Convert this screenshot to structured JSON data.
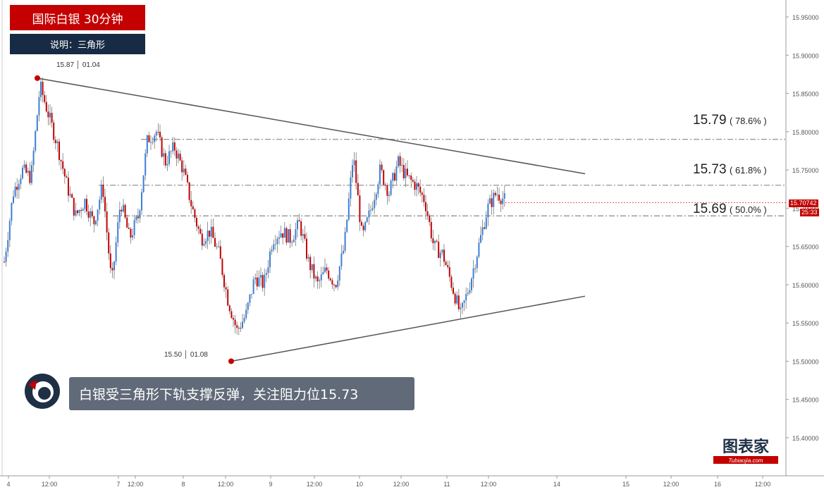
{
  "header": {
    "title": "国际白银 30分钟",
    "note": "说明：三角形"
  },
  "caption": "白银受三角形下轨支撑反弹，关注阻力位15.73",
  "watermark": {
    "main": "图表家",
    "sub": "Tubiaojia.com"
  },
  "extremes": {
    "high": "15.87 │ 01.04",
    "low": "15.50 │ 01.08"
  },
  "levels": [
    {
      "price": "15.79",
      "pct": "( 78.6% )"
    },
    {
      "price": "15.73",
      "pct": "( 61.8% )"
    },
    {
      "price": "15.69",
      "pct": "( 50.0% )"
    }
  ],
  "price_tags": {
    "current": "15.70742",
    "timer": "25:33"
  },
  "colors": {
    "up": "#3a7fd4",
    "down": "#c40000",
    "trendline": "#555555",
    "level_line": "#888888",
    "accent": "#c40000",
    "navy": "#172c44"
  },
  "chart_data": {
    "type": "candlestick",
    "title": "国际白银 30分钟",
    "ylim": [
      15.36,
      15.97
    ],
    "yticks": [
      "15.95000",
      "15.90000",
      "15.85000",
      "15.80000",
      "15.75000",
      "15.70000",
      "15.65000",
      "15.60000",
      "15.55000",
      "15.50000",
      "15.45000",
      "15.40000"
    ],
    "ytick_values": [
      15.95,
      15.9,
      15.85,
      15.8,
      15.75,
      15.7,
      15.65,
      15.6,
      15.55,
      15.5,
      15.45,
      15.4
    ],
    "xticks": [
      "4",
      "12:00",
      "7",
      "12:00",
      "8",
      "12:00",
      "9",
      "12:00",
      "10",
      "12:00",
      "11",
      "12:00",
      "14",
      "15",
      "12:00",
      "16",
      "12:00"
    ],
    "price_path": [
      [
        0,
        15.63
      ],
      [
        1,
        15.72
      ],
      [
        2,
        15.75
      ],
      [
        3,
        15.74
      ],
      [
        4,
        15.86
      ],
      [
        5,
        15.82
      ],
      [
        6,
        15.78
      ],
      [
        7,
        15.73
      ],
      [
        8,
        15.69
      ],
      [
        9,
        15.71
      ],
      [
        10,
        15.68
      ],
      [
        11,
        15.73
      ],
      [
        12,
        15.6
      ],
      [
        13,
        15.71
      ],
      [
        14,
        15.66
      ],
      [
        15,
        15.69
      ],
      [
        16,
        15.79
      ],
      [
        17,
        15.8
      ],
      [
        18,
        15.76
      ],
      [
        19,
        15.78
      ],
      [
        20,
        15.75
      ],
      [
        21,
        15.7
      ],
      [
        22,
        15.66
      ],
      [
        23,
        15.67
      ],
      [
        24,
        15.64
      ],
      [
        25,
        15.58
      ],
      [
        26,
        15.54
      ],
      [
        27,
        15.56
      ],
      [
        28,
        15.61
      ],
      [
        29,
        15.6
      ],
      [
        30,
        15.66
      ],
      [
        31,
        15.67
      ],
      [
        32,
        15.66
      ],
      [
        33,
        15.68
      ],
      [
        34,
        15.63
      ],
      [
        35,
        15.6
      ],
      [
        36,
        15.62
      ],
      [
        37,
        15.6
      ],
      [
        38,
        15.65
      ],
      [
        39,
        15.77
      ],
      [
        40,
        15.66
      ],
      [
        41,
        15.7
      ],
      [
        42,
        15.75
      ],
      [
        43,
        15.72
      ],
      [
        44,
        15.76
      ],
      [
        45,
        15.74
      ],
      [
        46,
        15.73
      ],
      [
        47,
        15.71
      ],
      [
        48,
        15.65
      ],
      [
        49,
        15.64
      ],
      [
        50,
        15.6
      ],
      [
        51,
        15.56
      ],
      [
        52,
        15.6
      ],
      [
        53,
        15.65
      ],
      [
        54,
        15.7
      ],
      [
        55,
        15.72
      ],
      [
        56,
        15.71
      ]
    ],
    "trendlines": [
      {
        "name": "upper",
        "from": [
          15.87,
          "01.04"
        ],
        "to": [
          15.745,
          "end"
        ]
      },
      {
        "name": "lower",
        "from": [
          15.5,
          "01.08"
        ],
        "to": [
          15.585,
          "end"
        ]
      }
    ],
    "levels": [
      15.79,
      15.73,
      15.69
    ],
    "current": 15.70742
  }
}
